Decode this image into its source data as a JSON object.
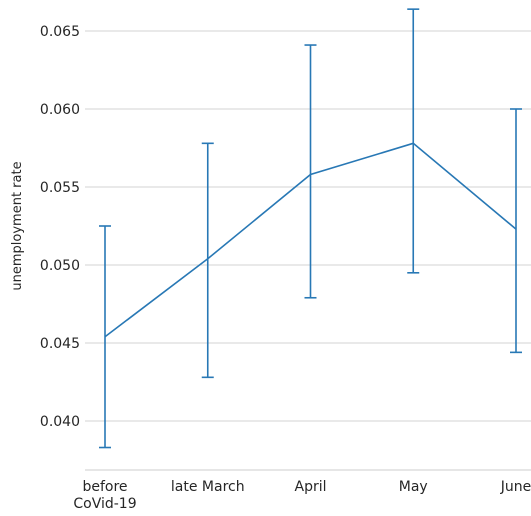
{
  "chart_data": {
    "type": "line",
    "title": "",
    "xlabel": "",
    "ylabel": "unemployment rate",
    "categories": [
      "before\nCoVid-19",
      "late March",
      "April",
      "May",
      "June"
    ],
    "series": [
      {
        "values": [
          0.0454,
          0.0504,
          0.0558,
          0.0578,
          0.0523
        ],
        "error_low": [
          0.0383,
          0.0428,
          0.0479,
          0.0495,
          0.0444
        ],
        "error_high": [
          0.0525,
          0.0578,
          0.0641,
          0.0664,
          0.06
        ],
        "color": "#2878b5"
      }
    ],
    "yticks": [
      0.04,
      0.045,
      0.05,
      0.055,
      0.06,
      0.065
    ],
    "ytick_labels": [
      "0.040",
      "0.045",
      "0.050",
      "0.055",
      "0.060",
      "0.065"
    ],
    "ylim": [
      0.037,
      0.0668
    ],
    "grid": "horizontal",
    "legend": "none"
  }
}
